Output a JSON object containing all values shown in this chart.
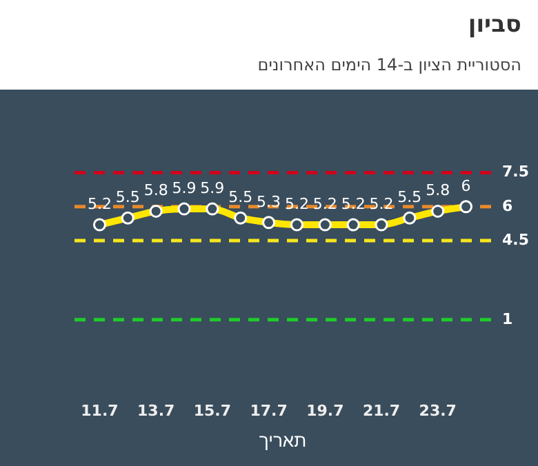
{
  "chart_data": {
    "type": "line",
    "title": "סביון",
    "subtitle": "הסטוריית הציון ב-14 הימים האחרונים",
    "xlabel": "תאריך",
    "categories": [
      "11.7",
      null,
      "13.7",
      null,
      "15.7",
      null,
      "17.7",
      null,
      "19.7",
      null,
      "21.7",
      null,
      "23.7",
      null
    ],
    "series": [
      {
        "color": "#ffe600",
        "values": [
          5.2,
          5.5,
          5.8,
          5.9,
          5.9,
          5.5,
          5.3,
          5.2,
          5.2,
          5.2,
          5.2,
          5.5,
          5.8,
          6
        ]
      }
    ],
    "tick_labels": "x",
    "marker": "circle",
    "line_style": "solid",
    "data_labels": true,
    "ref_lines": [
      {
        "axis": "y",
        "value": 7.5,
        "label": "7.5",
        "color": "#d0021b",
        "line_style": "dashed"
      },
      {
        "axis": "y",
        "value": 6,
        "label": "6",
        "color": "#e8892b",
        "line_style": "dashed"
      },
      {
        "axis": "y",
        "value": 4.5,
        "label": "4.5",
        "color": "#f5e61e",
        "line_style": "dashed"
      },
      {
        "axis": "y",
        "value": 1,
        "label": "1",
        "color": "#1fcc2a",
        "line_style": "dashed"
      }
    ]
  }
}
